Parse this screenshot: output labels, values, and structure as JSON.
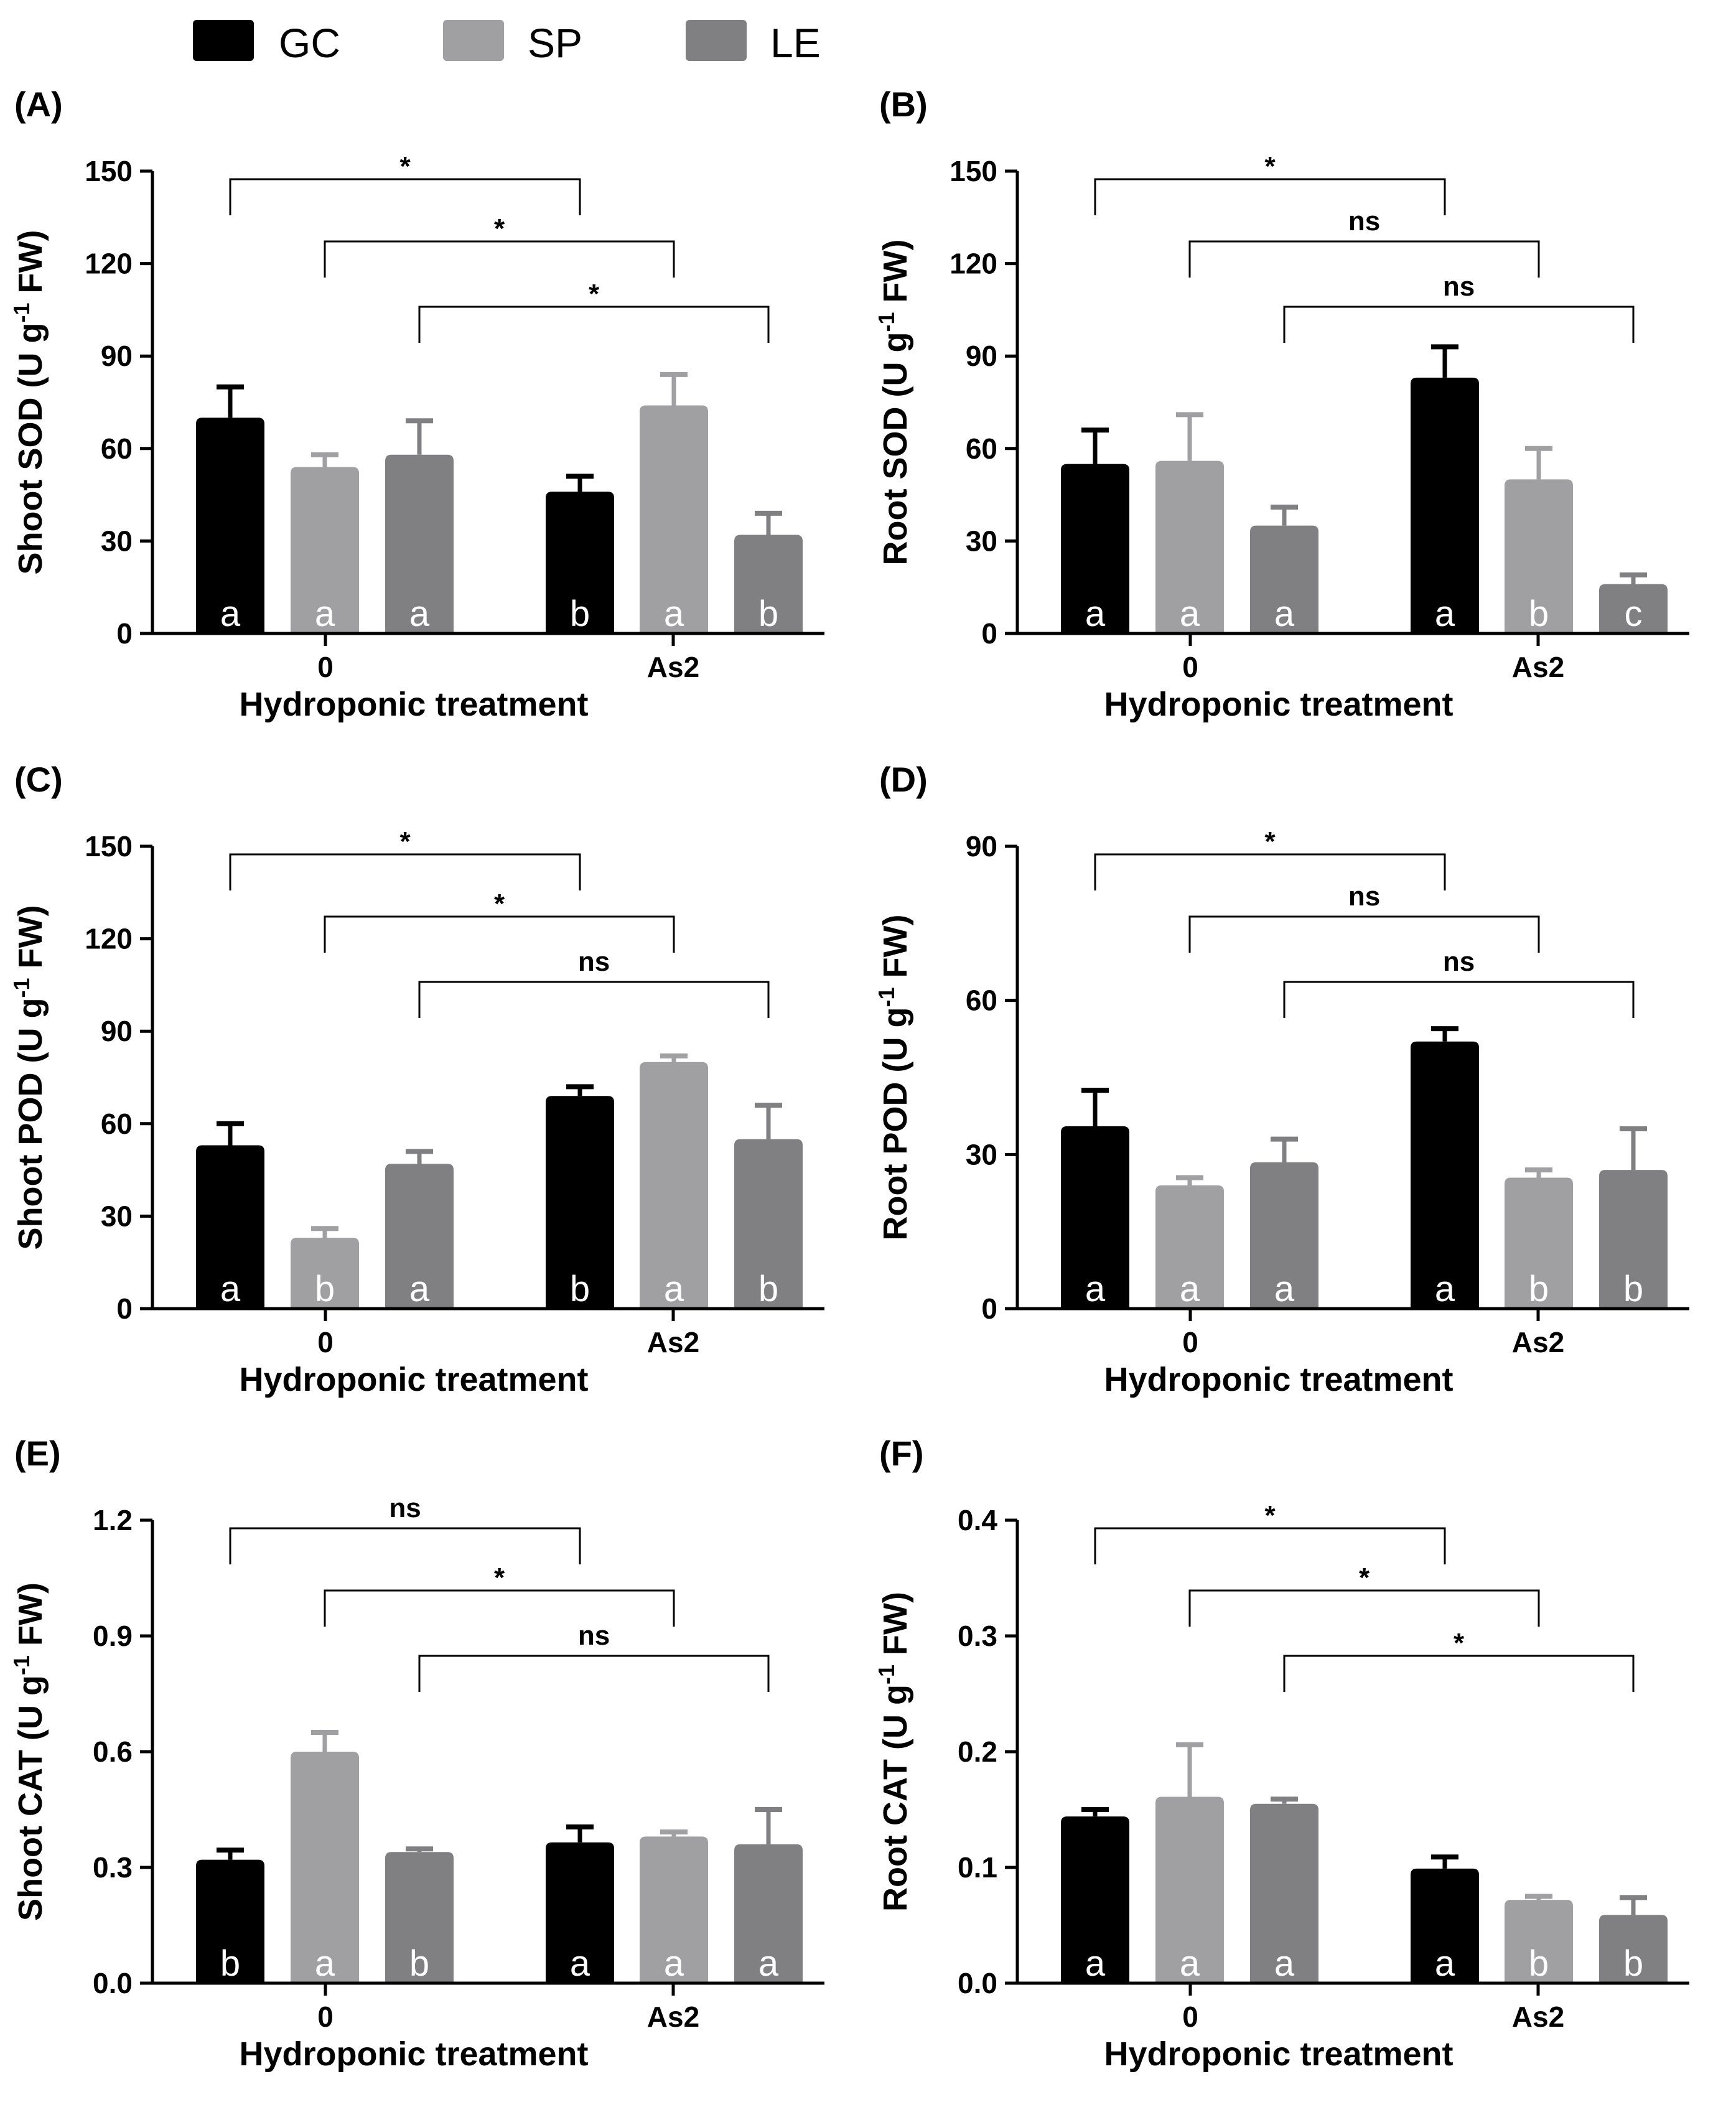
{
  "colors": {
    "GC": "#000000",
    "SP": "#a0a0a2",
    "LE": "#808082"
  },
  "legend": [
    {
      "key": "GC",
      "label": "GC"
    },
    {
      "key": "SP",
      "label": "SP"
    },
    {
      "key": "LE",
      "label": "LE"
    }
  ],
  "chart_data": [
    {
      "panel": "(A)",
      "type": "bar",
      "categories": [
        "0",
        "As2"
      ],
      "xlabel": "Hydroponic treatment",
      "ylabel": "Shoot SOD (U g-1 FW)",
      "ylabel_main": "Shoot SOD (U g",
      "ylabel_sup": "-1",
      "ylabel_tail": " FW)",
      "ylim": [
        0,
        150
      ],
      "yticks": [
        "0",
        "30",
        "60",
        "90",
        "120",
        "150"
      ],
      "series": [
        {
          "name": "GC",
          "values": [
            70,
            46
          ],
          "errors": [
            10,
            5
          ],
          "letters": [
            "a",
            "b"
          ]
        },
        {
          "name": "SP",
          "values": [
            54,
            74
          ],
          "errors": [
            4,
            10
          ],
          "letters": [
            "a",
            "a"
          ]
        },
        {
          "name": "LE",
          "values": [
            58,
            32
          ],
          "errors": [
            11,
            7
          ],
          "letters": [
            "a",
            "b"
          ]
        }
      ],
      "comparisons": [
        {
          "series": "GC",
          "label": "*"
        },
        {
          "series": "SP",
          "label": "*"
        },
        {
          "series": "LE",
          "label": "*"
        }
      ]
    },
    {
      "panel": "(B)",
      "type": "bar",
      "categories": [
        "0",
        "As2"
      ],
      "xlabel": "Hydroponic treatment",
      "ylabel": "Root SOD (U g-1 FW)",
      "ylabel_main": "Root SOD (U g",
      "ylabel_sup": "-1",
      "ylabel_tail": " FW)",
      "ylim": [
        0,
        150
      ],
      "yticks": [
        "0",
        "30",
        "60",
        "90",
        "120",
        "150"
      ],
      "series": [
        {
          "name": "GC",
          "values": [
            55,
            83
          ],
          "errors": [
            11,
            10
          ],
          "letters": [
            "a",
            "a"
          ]
        },
        {
          "name": "SP",
          "values": [
            56,
            50
          ],
          "errors": [
            15,
            10
          ],
          "letters": [
            "a",
            "b"
          ]
        },
        {
          "name": "LE",
          "values": [
            35,
            16
          ],
          "errors": [
            6,
            3
          ],
          "letters": [
            "a",
            "c"
          ]
        }
      ],
      "comparisons": [
        {
          "series": "GC",
          "label": "*"
        },
        {
          "series": "SP",
          "label": "ns"
        },
        {
          "series": "LE",
          "label": "ns"
        }
      ]
    },
    {
      "panel": "(C)",
      "type": "bar",
      "categories": [
        "0",
        "As2"
      ],
      "xlabel": "Hydroponic treatment",
      "ylabel": "Shoot POD (U g-1 FW)",
      "ylabel_main": "Shoot POD (U g",
      "ylabel_sup": "-1",
      "ylabel_tail": " FW)",
      "ylim": [
        0,
        150
      ],
      "yticks": [
        "0",
        "30",
        "60",
        "90",
        "120",
        "150"
      ],
      "series": [
        {
          "name": "GC",
          "values": [
            53,
            69
          ],
          "errors": [
            7,
            3
          ],
          "letters": [
            "a",
            "b"
          ]
        },
        {
          "name": "SP",
          "values": [
            23,
            80
          ],
          "errors": [
            3,
            2
          ],
          "letters": [
            "b",
            "a"
          ]
        },
        {
          "name": "LE",
          "values": [
            47,
            55
          ],
          "errors": [
            4,
            11
          ],
          "letters": [
            "a",
            "b"
          ]
        }
      ],
      "comparisons": [
        {
          "series": "GC",
          "label": "*"
        },
        {
          "series": "SP",
          "label": "*"
        },
        {
          "series": "LE",
          "label": "ns"
        }
      ]
    },
    {
      "panel": "(D)",
      "type": "bar",
      "categories": [
        "0",
        "As2"
      ],
      "xlabel": "Hydroponic treatment",
      "ylabel": "Root POD (U g-1 FW)",
      "ylabel_main": "Root POD (U g",
      "ylabel_sup": "-1",
      "ylabel_tail": " FW)",
      "ylim": [
        0,
        90
      ],
      "yticks": [
        "0",
        "30",
        "60",
        "90"
      ],
      "series": [
        {
          "name": "GC",
          "values": [
            35.5,
            52
          ],
          "errors": [
            7,
            2.5
          ],
          "letters": [
            "a",
            "a"
          ]
        },
        {
          "name": "SP",
          "values": [
            24,
            25.5
          ],
          "errors": [
            1.5,
            1.5
          ],
          "letters": [
            "a",
            "b"
          ]
        },
        {
          "name": "LE",
          "values": [
            28.5,
            27
          ],
          "errors": [
            4.5,
            8
          ],
          "letters": [
            "a",
            "b"
          ]
        }
      ],
      "comparisons": [
        {
          "series": "GC",
          "label": "*"
        },
        {
          "series": "SP",
          "label": "ns"
        },
        {
          "series": "LE",
          "label": "ns"
        }
      ]
    },
    {
      "panel": "(E)",
      "type": "bar",
      "categories": [
        "0",
        "As2"
      ],
      "xlabel": "Hydroponic treatment",
      "ylabel": "Shoot CAT (U g-1 FW)",
      "ylabel_main": "Shoot CAT (U g",
      "ylabel_sup": "-1",
      "ylabel_tail": " FW)",
      "ylim": [
        0,
        1.2
      ],
      "yticks": [
        "0.0",
        "0.3",
        "0.6",
        "0.9",
        "1.2"
      ],
      "series": [
        {
          "name": "GC",
          "values": [
            0.32,
            0.365
          ],
          "errors": [
            0.025,
            0.04
          ],
          "letters": [
            "b",
            "a"
          ]
        },
        {
          "name": "SP",
          "values": [
            0.6,
            0.38
          ],
          "errors": [
            0.05,
            0.012
          ],
          "letters": [
            "a",
            "a"
          ]
        },
        {
          "name": "LE",
          "values": [
            0.34,
            0.36
          ],
          "errors": [
            0.008,
            0.09
          ],
          "letters": [
            "b",
            "a"
          ]
        }
      ],
      "comparisons": [
        {
          "series": "GC",
          "label": "ns"
        },
        {
          "series": "SP",
          "label": "*"
        },
        {
          "series": "LE",
          "label": "ns"
        }
      ]
    },
    {
      "panel": "(F)",
      "type": "bar",
      "categories": [
        "0",
        "As2"
      ],
      "xlabel": "Hydroponic treatment",
      "ylabel": "Root CAT (U g-1 FW)",
      "ylabel_main": "Root CAT (U g",
      "ylabel_sup": "-1",
      "ylabel_tail": " FW)",
      "ylim": [
        0,
        0.4
      ],
      "yticks": [
        "0.0",
        "0.1",
        "0.2",
        "0.3",
        "0.4"
      ],
      "series": [
        {
          "name": "GC",
          "values": [
            0.144,
            0.099
          ],
          "errors": [
            0.006,
            0.01
          ],
          "letters": [
            "a",
            "a"
          ]
        },
        {
          "name": "SP",
          "values": [
            0.161,
            0.072
          ],
          "errors": [
            0.045,
            0.003
          ],
          "letters": [
            "a",
            "b"
          ]
        },
        {
          "name": "LE",
          "values": [
            0.155,
            0.059
          ],
          "errors": [
            0.004,
            0.015
          ],
          "letters": [
            "a",
            "b"
          ]
        }
      ],
      "comparisons": [
        {
          "series": "GC",
          "label": "*"
        },
        {
          "series": "SP",
          "label": "*"
        },
        {
          "series": "LE",
          "label": "*"
        }
      ]
    }
  ]
}
